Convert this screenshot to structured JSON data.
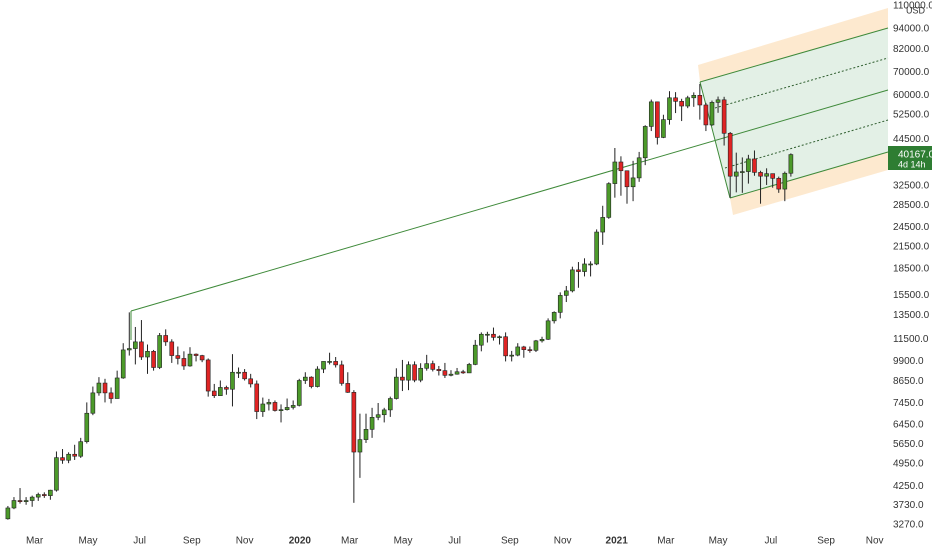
{
  "chart_data": {
    "type": "candlestick",
    "currency": "USD",
    "log_scale": true,
    "up_color": "#4c9a2a",
    "down_color": "#e02424",
    "last_price_label": "40167.0",
    "countdown": "4d 14h",
    "open": [
      3410,
      3670,
      3860,
      3830,
      3860,
      3950,
      4020,
      3990,
      4140,
      5160,
      5070,
      5280,
      5210,
      5750,
      6970,
      8000,
      8550,
      8000,
      7700,
      8850,
      10700,
      10800,
      11300,
      10200,
      10600,
      9500,
      11800,
      11300,
      10300,
      10100,
      9600,
      10400,
      10300,
      10000,
      8100,
      7850,
      8300,
      8200,
      9200,
      9200,
      8800,
      8500,
      7050,
      7420,
      7500,
      7100,
      7140,
      7250,
      7350,
      8700,
      8900,
      8350,
      9400,
      9900,
      9900,
      9670,
      8530,
      8030,
      5360,
      5830,
      6250,
      6780,
      6900,
      7130,
      7700,
      8900,
      8720,
      9680,
      8720,
      9450,
      9750,
      9380,
      9300,
      9010,
      9080,
      9230,
      9160,
      9700,
      11050,
      11900,
      11900,
      11650,
      11700,
      10280,
      10330,
      10920,
      10720,
      10670,
      11380,
      11500,
      13030,
      13800,
      15480,
      15960,
      18400,
      18190,
      19150,
      19150,
      23770,
      26250,
      33000,
      38200,
      36000,
      32300,
      34300,
      39300,
      48600,
      57400,
      45100,
      50900,
      59000,
      57600,
      55800,
      59000,
      60000,
      56200,
      49100,
      57200,
      58200,
      46400,
      34700,
      35700,
      35800,
      39000,
      35600,
      34700,
      35300,
      34200,
      31800,
      35400
    ],
    "high": [
      3720,
      3950,
      4200,
      3950,
      3990,
      4070,
      4080,
      4150,
      5380,
      5470,
      5350,
      5630,
      5900,
      7500,
      8350,
      8900,
      8800,
      8300,
      9300,
      11200,
      13800,
      12500,
      13100,
      11100,
      10700,
      12000,
      12300,
      11500,
      10950,
      10600,
      10900,
      10450,
      10350,
      10100,
      8500,
      8700,
      8400,
      10400,
      9500,
      9400,
      9100,
      8700,
      7750,
      7680,
      7600,
      7400,
      7700,
      7600,
      8800,
      9200,
      8950,
      9580,
      9900,
      10500,
      10200,
      9950,
      9200,
      8150,
      6950,
      6950,
      7230,
      7470,
      7230,
      7800,
      9450,
      10000,
      9900,
      9900,
      9780,
      10350,
      9950,
      9600,
      9800,
      9330,
      9470,
      9350,
      9800,
      11450,
      12050,
      12100,
      12450,
      11800,
      12050,
      10630,
      11200,
      11000,
      10950,
      11450,
      11700,
      13250,
      13900,
      15800,
      16500,
      18800,
      19400,
      19900,
      19500,
      24200,
      28400,
      33300,
      42000,
      39700,
      36000,
      38500,
      40900,
      49000,
      58300,
      57500,
      52600,
      61700,
      61300,
      58600,
      59800,
      61200,
      64800,
      57000,
      57900,
      59500,
      59400,
      46800,
      40700,
      39400,
      40100,
      41300,
      36000,
      36600,
      35100,
      34600,
      35800,
      40500
    ],
    "low": [
      3390,
      3640,
      3780,
      3750,
      3700,
      3850,
      3930,
      3880,
      4100,
      4950,
      4970,
      5080,
      5150,
      5680,
      6880,
      7850,
      7500,
      7450,
      7700,
      8800,
      10300,
      9700,
      10000,
      9100,
      9300,
      9400,
      11000,
      9800,
      9700,
      9350,
      9550,
      9900,
      9850,
      7800,
      7730,
      7850,
      7900,
      7300,
      8850,
      8700,
      8300,
      6700,
      6800,
      7100,
      7050,
      6550,
      7100,
      7150,
      7300,
      8500,
      8250,
      8300,
      9150,
      9700,
      9500,
      8400,
      8000,
      3800,
      4500,
      5700,
      5900,
      6650,
      6550,
      6800,
      7650,
      8100,
      8150,
      8600,
      8600,
      9300,
      9250,
      9000,
      8850,
      8950,
      9050,
      9100,
      9150,
      9650,
      10600,
      11250,
      11400,
      11100,
      9900,
      9900,
      10250,
      10150,
      10500,
      10550,
      11250,
      11450,
      12800,
      13250,
      14800,
      15800,
      16300,
      17600,
      17600,
      19000,
      21800,
      26000,
      30000,
      30400,
      28800,
      29300,
      33400,
      37400,
      47100,
      43000,
      44900,
      49200,
      53200,
      50400,
      55000,
      55500,
      50900,
      47100,
      48800,
      53300,
      42700,
      30000,
      31100,
      31000,
      33000,
      34800,
      28800,
      32700,
      32100,
      31000,
      29300,
      34600
    ],
    "close": [
      3670,
      3860,
      3830,
      3860,
      3950,
      4020,
      3990,
      4140,
      5160,
      5070,
      5280,
      5210,
      5750,
      6970,
      8000,
      8550,
      8000,
      7700,
      8850,
      10700,
      10800,
      11300,
      10200,
      10600,
      9500,
      11800,
      11300,
      10300,
      10100,
      9600,
      10400,
      10300,
      10000,
      8100,
      7850,
      8300,
      8200,
      9200,
      9200,
      8800,
      8500,
      7050,
      7420,
      7500,
      7100,
      7140,
      7250,
      7350,
      8700,
      8900,
      8350,
      9400,
      9900,
      9900,
      9670,
      8530,
      8030,
      5360,
      5830,
      6250,
      6780,
      6900,
      7130,
      7700,
      8900,
      8720,
      9680,
      8720,
      9450,
      9750,
      9380,
      9300,
      9010,
      9080,
      9230,
      9160,
      9700,
      11050,
      11900,
      11900,
      11650,
      11700,
      10280,
      10330,
      10920,
      10720,
      10670,
      11380,
      11500,
      13030,
      13800,
      15480,
      15960,
      18400,
      18190,
      19150,
      19150,
      23770,
      26250,
      33000,
      38200,
      36000,
      32300,
      34300,
      39300,
      48600,
      57400,
      45100,
      50900,
      59000,
      57600,
      55800,
      59000,
      60000,
      56200,
      49100,
      57200,
      58200,
      46400,
      34700,
      35700,
      35800,
      39000,
      35600,
      34700,
      35300,
      34200,
      31800,
      35400,
      40167
    ],
    "xlim": [
      -1.3,
      145
    ],
    "xticks": [
      {
        "value": 4.4,
        "label": "Mar"
      },
      {
        "value": 13.2,
        "label": "May"
      },
      {
        "value": 21.7,
        "label": "Jul"
      },
      {
        "value": 30.3,
        "label": "Sep"
      },
      {
        "value": 39,
        "label": "Nov"
      },
      {
        "value": 48.1,
        "label": "2020"
      },
      {
        "value": 56.3,
        "label": "Mar"
      },
      {
        "value": 65.1,
        "label": "May"
      },
      {
        "value": 73.6,
        "label": "Jul"
      },
      {
        "value": 82.7,
        "label": "Sep"
      },
      {
        "value": 91.4,
        "label": "Nov"
      },
      {
        "value": 100.3,
        "label": "2021"
      },
      {
        "value": 108.4,
        "label": "Mar"
      },
      {
        "value": 117,
        "label": "May"
      },
      {
        "value": 125.7,
        "label": "Jul"
      },
      {
        "value": 134.8,
        "label": "Sep"
      },
      {
        "value": 142.8,
        "label": "Nov"
      }
    ],
    "ylim": [
      3015,
      114400
    ],
    "yticks": [
      {
        "value": 110000,
        "label": "110000.0"
      },
      {
        "value": 94000,
        "label": "94000.0"
      },
      {
        "value": 82000,
        "label": "82000.0"
      },
      {
        "value": 70000,
        "label": "70000.0"
      },
      {
        "value": 60000,
        "label": "60000.0"
      },
      {
        "value": 52500,
        "label": "52500.0"
      },
      {
        "value": 44500,
        "label": "44500.0"
      },
      {
        "value": 32500,
        "label": "32500.0"
      },
      {
        "value": 28500,
        "label": "28500.0"
      },
      {
        "value": 24500,
        "label": "24500.0"
      },
      {
        "value": 21500,
        "label": "21500.0"
      },
      {
        "value": 18500,
        "label": "18500.0"
      },
      {
        "value": 15500,
        "label": "15500.0"
      },
      {
        "value": 13500,
        "label": "13500.0"
      },
      {
        "value": 11500,
        "label": "11500.0"
      },
      {
        "value": 9900,
        "label": "9900.0"
      },
      {
        "value": 8650,
        "label": "8650.0"
      },
      {
        "value": 7450,
        "label": "7450.0"
      },
      {
        "value": 6450,
        "label": "6450.0"
      },
      {
        "value": 5650,
        "label": "5650.0"
      },
      {
        "value": 4950,
        "label": "4950.0"
      },
      {
        "value": 4250,
        "label": "4250.0"
      },
      {
        "value": 3730,
        "label": "3730.0"
      },
      {
        "value": 3270,
        "label": "3270.0"
      }
    ]
  }
}
